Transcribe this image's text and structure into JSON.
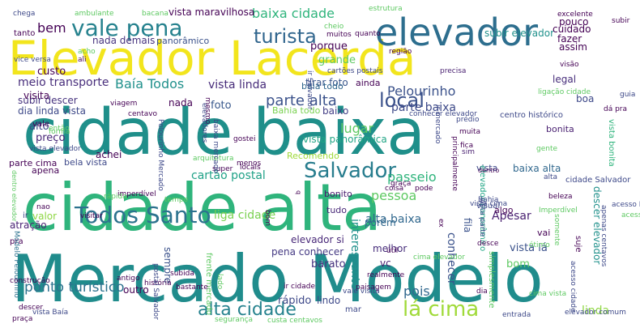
{
  "words": [
    {
      "text": "cidade baixa",
      "color": "#1f8f8a"
    },
    {
      "text": "cidade alta",
      "color": "#2fb47c"
    },
    {
      "text": "Mercado Modelo",
      "color": "#208c8c"
    },
    {
      "text": "Elevador Lacerda",
      "color": "#f2e51d"
    },
    {
      "text": "elevador",
      "color": "#2d6e8e"
    },
    {
      "text": "vale pena",
      "color": "#26828e"
    },
    {
      "text": "turista",
      "color": "#31668e"
    },
    {
      "text": "baixa cidade",
      "color": "#2fb47c"
    },
    {
      "text": "Salvador",
      "color": "#287d8e"
    },
    {
      "text": "Todos Santo",
      "color": "#2c728e"
    },
    {
      "text": "alta cidade",
      "color": "#26828e"
    },
    {
      "text": "lá cima",
      "color": "#a0da39"
    },
    {
      "text": "ponto turístico",
      "color": "#2c728e"
    },
    {
      "text": "local",
      "color": "#3b528b"
    },
    {
      "text": "Pelourinho",
      "color": "#3b528b"
    },
    {
      "text": "parte alta",
      "color": "#3b528b"
    },
    {
      "text": "parte baixa",
      "color": "#3e4a89"
    },
    {
      "text": "Baía Todos",
      "color": "#21918c"
    },
    {
      "text": "vista linda",
      "color": "#472c7a"
    },
    {
      "text": "meio transporte",
      "color": "#472d7b"
    },
    {
      "text": "lugar",
      "color": "#5ec962"
    },
    {
      "text": "passeio",
      "color": "#2fb47c"
    },
    {
      "text": "pessoa",
      "color": "#5ec962"
    },
    {
      "text": "cartão postal",
      "color": "#1fa187"
    },
    {
      "text": "pois",
      "color": "#31688e"
    },
    {
      "text": "bem",
      "color": "#440154"
    },
    {
      "text": "custo",
      "color": "#440154"
    },
    {
      "text": "preço",
      "color": "#482878"
    },
    {
      "text": "alto",
      "color": "#3e4989"
    },
    {
      "text": "nada demais",
      "color": "#46327e"
    },
    {
      "text": "panorâmico",
      "color": "#3b528b"
    },
    {
      "text": "tirar foto",
      "color": "#39568c"
    },
    {
      "text": "porque",
      "color": "#440154"
    },
    {
      "text": "grande",
      "color": "#5ec962"
    },
    {
      "text": "subir descer",
      "color": "#46327e"
    },
    {
      "text": "dia linda vista",
      "color": "#3e4989"
    },
    {
      "text": "visita",
      "color": "#440154"
    },
    {
      "text": "baixo",
      "color": "#433e85"
    },
    {
      "text": "ainda",
      "color": "#440154"
    },
    {
      "text": "baia todo",
      "color": "#31688e"
    },
    {
      "text": "boa",
      "color": "#3e4989"
    },
    {
      "text": "legal",
      "color": "#472d7b"
    },
    {
      "text": "foto",
      "color": "#38588c"
    },
    {
      "text": "nada",
      "color": "#440154"
    },
    {
      "text": "vale",
      "color": "#440154"
    },
    {
      "text": "Bahia todo",
      "color": "#7ad151"
    },
    {
      "text": "vista panorâmica",
      "color": "#21a585"
    },
    {
      "text": "Recomendo",
      "color": "#9fda3a"
    },
    {
      "text": "atração",
      "color": "#482173"
    },
    {
      "text": "valor",
      "color": "#8fd744"
    },
    {
      "text": "ir",
      "color": "#3e4989"
    },
    {
      "text": "pra",
      "color": "#440154"
    },
    {
      "text": "bonito",
      "color": "#481c6e"
    },
    {
      "text": "porém",
      "color": "#31688e"
    },
    {
      "text": "tudo",
      "color": "#482878"
    },
    {
      "text": "liga cidade",
      "color": "#7ad151"
    },
    {
      "text": "alta baixa",
      "color": "#31688e"
    },
    {
      "text": "vista lá",
      "color": "#3b528b"
    },
    {
      "text": "bom",
      "color": "#5ec962"
    },
    {
      "text": "Apesar",
      "color": "#481f70"
    },
    {
      "text": "melhor",
      "color": "#472d7b"
    },
    {
      "text": "elevador si",
      "color": "#482878"
    },
    {
      "text": "pena conhecer",
      "color": "#443983"
    },
    {
      "text": "barato",
      "color": "#46327e"
    },
    {
      "text": "lindo",
      "color": "#3e4989"
    },
    {
      "text": "mar",
      "color": "#3e4989"
    },
    {
      "text": "linda",
      "color": "#8fd744"
    },
    {
      "text": "outro",
      "color": "#440154"
    },
    {
      "text": "rápido",
      "color": "#3e4989"
    },
    {
      "text": "sempre",
      "color": "#3b528b"
    },
    {
      "text": "bela vista",
      "color": "#3e4989"
    },
    {
      "text": "achei",
      "color": "#440154"
    },
    {
      "text": "apena",
      "color": "#440154"
    },
    {
      "text": "parte cima",
      "color": "#440154"
    },
    {
      "text": "vista",
      "color": "#3e4989"
    },
    {
      "text": "baixa alta",
      "color": "#31688e"
    },
    {
      "text": "fila",
      "color": "#3b528b"
    },
    {
      "text": "bonita",
      "color": "#481f70"
    },
    {
      "text": "interessante",
      "color": "#21918c"
    },
    {
      "text": "vc",
      "color": "#481f70"
    },
    {
      "text": "conhecer",
      "color": "#3b528b"
    },
    {
      "text": "vai",
      "color": "#440154"
    },
    {
      "text": "subir elevador",
      "color": "#21918c"
    },
    {
      "text": "fazer",
      "color": "#440154"
    },
    {
      "text": "cuidado",
      "color": "#440154"
    },
    {
      "text": "assim",
      "color": "#440154"
    },
    {
      "text": "pouco",
      "color": "#440154"
    },
    {
      "text": "vista maravilhosa",
      "color": "#440154"
    },
    {
      "text": "bacana",
      "color": "#5ec962"
    },
    {
      "text": "ambulante",
      "color": "#5ec962"
    },
    {
      "text": "chega",
      "color": "#3e4989"
    },
    {
      "text": "tanto",
      "color": "#440154"
    },
    {
      "text": "acho",
      "color": "#5ec962"
    },
    {
      "text": "ali",
      "color": "#440154"
    },
    {
      "text": "vice versa",
      "color": "#3e4989"
    },
    {
      "text": "descer elevador",
      "color": "#21918c"
    },
    {
      "text": "elevador panorâmico",
      "color": "#21a585"
    },
    {
      "text": "Modelo Pelourinho",
      "color": "#2c728e"
    },
    {
      "text": "vista bonita",
      "color": "#2fb47c"
    },
    {
      "text": "dentro",
      "color": "#440154"
    },
    {
      "text": "visual",
      "color": "#3e4989"
    },
    {
      "text": "algo",
      "color": "#440154"
    },
    {
      "text": "entrada",
      "color": "#3e4989"
    },
    {
      "text": "elevador comum",
      "color": "#3e4989"
    },
    {
      "text": "segurança",
      "color": "#5ec962"
    },
    {
      "text": "custa centavos",
      "color": "#5ec962"
    },
    {
      "text": "construção",
      "color": "#440154"
    },
    {
      "text": "precisa",
      "color": "#481f70"
    },
    {
      "text": "região",
      "color": "#440154"
    },
    {
      "text": "cartões postais",
      "color": "#3e4989"
    },
    {
      "text": "estrutura",
      "color": "#5ec962"
    },
    {
      "text": "excelente",
      "color": "#440154"
    },
    {
      "text": "guia",
      "color": "#3e4989"
    },
    {
      "text": "centro histórico",
      "color": "#3e4989"
    },
    {
      "text": "ligação cidade",
      "color": "#5ec962"
    },
    {
      "text": "acesso Pelourinho",
      "color": "#3e4989"
    },
    {
      "text": "ótimo",
      "color": "#5ec962"
    },
    {
      "text": "gente",
      "color": "#5ec962"
    },
    {
      "text": "muita",
      "color": "#440154"
    },
    {
      "text": "fica",
      "color": "#440154"
    },
    {
      "text": "sim",
      "color": "#481f70"
    },
    {
      "text": "Bahia",
      "color": "#3e4989"
    },
    {
      "text": "cidade Salvador",
      "color": "#3e4989"
    },
    {
      "text": "dá pra",
      "color": "#440154"
    },
    {
      "text": "visão",
      "color": "#440154"
    },
    {
      "text": "subir",
      "color": "#440154"
    },
    {
      "text": "apenas centavos",
      "color": "#3e4989"
    },
    {
      "text": "simplesmente",
      "color": "#5ec962"
    },
    {
      "text": "paisagem",
      "color": "#440154"
    },
    {
      "text": "realmente",
      "color": "#440154"
    },
    {
      "text": "cima elevador",
      "color": "#5ec962"
    },
    {
      "text": "coisa",
      "color": "#440154"
    },
    {
      "text": "pode",
      "color": "#440154"
    },
    {
      "text": "graça",
      "color": "#440154"
    },
    {
      "text": "útil",
      "color": "#440154"
    },
    {
      "text": "locais",
      "color": "#440154"
    },
    {
      "text": "super",
      "color": "#440154"
    },
    {
      "text": "cheio",
      "color": "#5ec962"
    },
    {
      "text": "muitos",
      "color": "#440154"
    },
    {
      "text": "quanto",
      "color": "#440154"
    },
    {
      "text": "ir Salvador",
      "color": "#3e4989"
    },
    {
      "text": "ir mercado",
      "color": "#3e4989"
    },
    {
      "text": "conhecer elevador",
      "color": "#3e4989"
    },
    {
      "text": "prédio",
      "color": "#3e4989"
    },
    {
      "text": "principalmente",
      "color": "#440154"
    },
    {
      "text": "história",
      "color": "#440154"
    },
    {
      "text": "antigo",
      "color": "#440154"
    },
    {
      "text": "frente mercado",
      "color": "#5ec962"
    },
    {
      "text": "ir cidade",
      "color": "#440154"
    },
    {
      "text": "bastante",
      "color": "#440154"
    },
    {
      "text": "subida",
      "color": "#440154"
    },
    {
      "text": "lado",
      "color": "#5ec962"
    },
    {
      "text": "tempo",
      "color": "#5ec962"
    },
    {
      "text": "postal Salvador",
      "color": "#3e4989"
    },
    {
      "text": "imperdível",
      "color": "#440154"
    },
    {
      "text": "centavo",
      "color": "#440154"
    },
    {
      "text": "arquitetura",
      "color": "#5ec962"
    },
    {
      "text": "menos",
      "color": "#440154"
    },
    {
      "text": "viagem",
      "color": "#440154"
    },
    {
      "text": "elevadores",
      "color": "#3e4989"
    },
    {
      "text": "baixa mercado",
      "color": "#3e4989"
    },
    {
      "text": "Pelourinho Mercado",
      "color": "#3e4989"
    },
    {
      "text": "dentro elevador",
      "color": "#5ec962"
    },
    {
      "text": "gostei",
      "color": "#440154"
    },
    {
      "text": "mesmo",
      "color": "#440154"
    },
    {
      "text": "então",
      "color": "#5ec962"
    },
    {
      "text": "forma",
      "color": "#5ec962"
    },
    {
      "text": "vista elevador",
      "color": "#3e4989"
    },
    {
      "text": "visitar",
      "color": "#440154"
    },
    {
      "text": "rápida",
      "color": "#5ec962"
    },
    {
      "text": "nao",
      "color": "#440154"
    },
    {
      "text": "beleza",
      "color": "#440154"
    },
    {
      "text": "somente",
      "color": "#5ec962"
    },
    {
      "text": "cima vista",
      "color": "#5ec962"
    },
    {
      "text": "suje",
      "color": "#440154"
    },
    {
      "text": "acesso cidade",
      "color": "#3e4989"
    },
    {
      "text": "vista parte",
      "color": "#3e4989"
    },
    {
      "text": "ex",
      "color": "#440154"
    },
    {
      "text": "praça",
      "color": "#440154"
    },
    {
      "text": "descer",
      "color": "#440154"
    },
    {
      "text": "vista Baía",
      "color": "#3e4989"
    },
    {
      "text": "q",
      "color": "#440154"
    },
    {
      "text": "vale visita",
      "color": "#3e4989"
    },
    {
      "text": "bom",
      "color": "#440154"
    },
    {
      "text": "Imperdível",
      "color": "#5ec962"
    },
    {
      "text": "vista cima",
      "color": "#3e4989"
    },
    {
      "text": "alta",
      "color": "#3e4989"
    },
    {
      "text": "dia",
      "color": "#440154"
    },
    {
      "text": "desce",
      "color": "#440154"
    },
    {
      "text": "acessível",
      "color": "#5ec962"
    }
  ]
}
